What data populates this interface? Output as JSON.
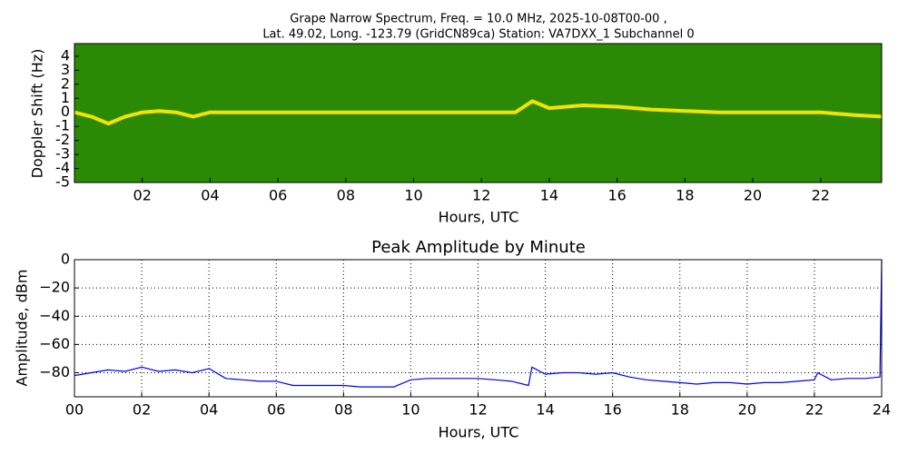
{
  "chart_data": [
    {
      "type": "spectrogram",
      "title": "Grape Narrow Spectrum, Freq. = 10.0 MHz, 2025-10-08T00-00 ,",
      "subtitle": "Lat.  49.02, Long. -123.79 (GridCN89ca) Station: VA7DXX_1 Subchannel 0",
      "xlabel": "Hours, UTC",
      "ylabel": "Doppler Shift (Hz)",
      "xlim": [
        0,
        23.8
      ],
      "ylim": [
        -5,
        4.9
      ],
      "xticks": [
        {
          "value": 2,
          "label": "02"
        },
        {
          "value": 4,
          "label": "04"
        },
        {
          "value": 6,
          "label": "06"
        },
        {
          "value": 8,
          "label": "08"
        },
        {
          "value": 10,
          "label": "10"
        },
        {
          "value": 12,
          "label": "12"
        },
        {
          "value": 14,
          "label": "14"
        },
        {
          "value": 16,
          "label": "16"
        },
        {
          "value": 18,
          "label": "18"
        },
        {
          "value": 20,
          "label": "20"
        },
        {
          "value": 22,
          "label": "22"
        }
      ],
      "yticks": [
        4,
        3,
        2,
        1,
        0,
        -1,
        -2,
        -3,
        -4,
        -5
      ],
      "background_color": "#2a8a06",
      "color": "#f2e300",
      "x": [
        0,
        0.5,
        1,
        1.5,
        2,
        2.5,
        3,
        3.5,
        4,
        5,
        6,
        7,
        8,
        9,
        10,
        11,
        12,
        13,
        13.5,
        14,
        15,
        16,
        17,
        18,
        19,
        20,
        21,
        22,
        23,
        23.8
      ],
      "values": [
        0,
        -0.3,
        -0.8,
        -0.3,
        0,
        0.1,
        0,
        -0.3,
        0,
        0,
        0,
        0,
        0,
        0,
        0,
        0,
        0,
        0,
        0.8,
        0.3,
        0.5,
        0.4,
        0.2,
        0.1,
        0,
        0,
        0,
        0,
        -0.2,
        -0.3
      ]
    },
    {
      "type": "line",
      "title": "Peak Amplitude by Minute",
      "xlabel": "Hours, UTC",
      "ylabel": "Amplitude, dBm",
      "xlim": [
        0,
        24
      ],
      "ylim": [
        -97,
        0
      ],
      "grid": true,
      "color": "#0000ee",
      "xticks": [
        {
          "value": 0,
          "label": "00"
        },
        {
          "value": 2,
          "label": "02"
        },
        {
          "value": 4,
          "label": "04"
        },
        {
          "value": 6,
          "label": "06"
        },
        {
          "value": 8,
          "label": "08"
        },
        {
          "value": 10,
          "label": "10"
        },
        {
          "value": 12,
          "label": "12"
        },
        {
          "value": 14,
          "label": "14"
        },
        {
          "value": 16,
          "label": "16"
        },
        {
          "value": 18,
          "label": "18"
        },
        {
          "value": 20,
          "label": "20"
        },
        {
          "value": 22,
          "label": "22"
        },
        24
      ],
      "yticks": [
        0,
        {
          "value": -20,
          "label": "−20"
        },
        {
          "value": -40,
          "label": "−40"
        },
        {
          "value": -60,
          "label": "−60"
        },
        {
          "value": -80,
          "label": "−80"
        }
      ],
      "x": [
        0,
        0.5,
        1,
        1.5,
        2,
        2.5,
        3,
        3.5,
        4,
        4.5,
        5,
        5.5,
        6,
        6.5,
        7,
        7.5,
        8,
        8.5,
        9,
        9.5,
        10,
        10.5,
        11,
        11.5,
        12,
        12.5,
        13,
        13.5,
        13.6,
        14,
        14.5,
        15,
        15.5,
        16,
        16.5,
        17,
        17.5,
        18,
        18.5,
        19,
        19.5,
        20,
        20.5,
        21,
        21.5,
        22,
        22.1,
        22.5,
        23,
        23.5,
        23.95,
        24
      ],
      "values": [
        -82,
        -80,
        -78,
        -79,
        -76,
        -79,
        -78,
        -80,
        -77,
        -84,
        -85,
        -86,
        -86,
        -89,
        -89,
        -89,
        -89,
        -90,
        -90,
        -90,
        -85,
        -84,
        -84,
        -84,
        -84,
        -85,
        -86,
        -89,
        -76,
        -81,
        -80,
        -80,
        -81,
        -80,
        -83,
        -85,
        -86,
        -87,
        -88,
        -87,
        -87,
        -88,
        -87,
        -87,
        -86,
        -85,
        -80,
        -85,
        -84,
        -84,
        -83,
        0
      ]
    }
  ]
}
